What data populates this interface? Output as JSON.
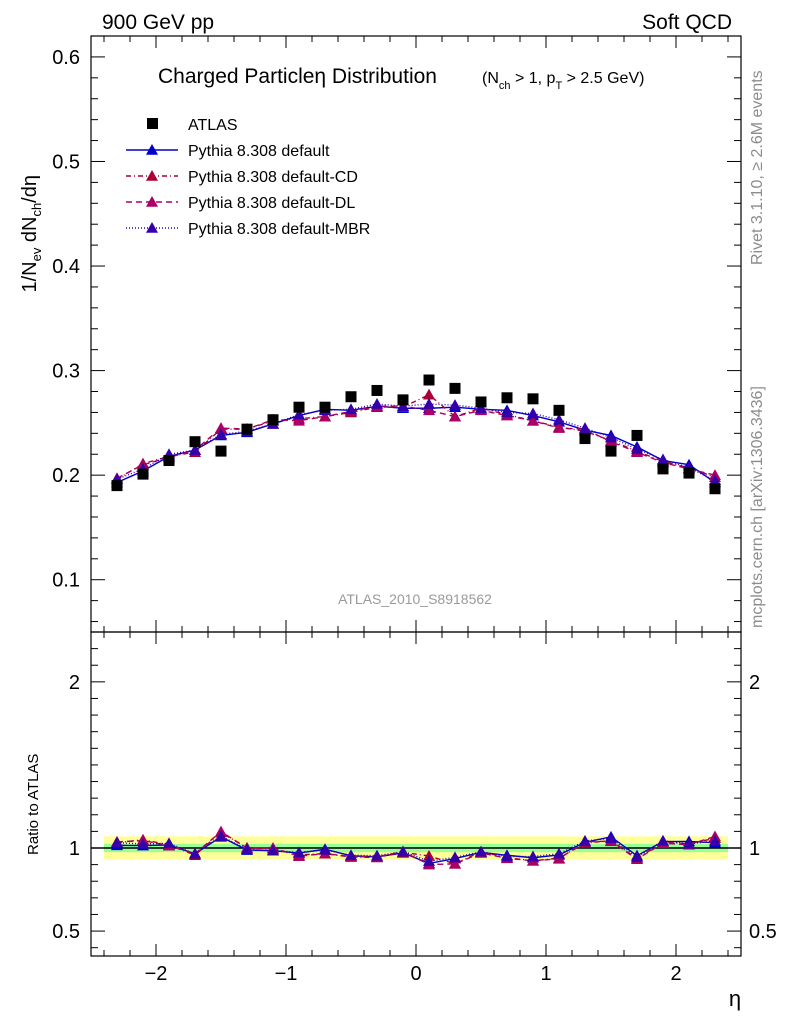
{
  "header": {
    "left": "900 GeV pp",
    "right": "Soft QCD"
  },
  "side_labels": {
    "rivet": "Rivet 3.1.10, ≥ 2.6M events",
    "mcplots": "mcplots.cern.ch [arXiv:1306.3436]"
  },
  "chart_data": {
    "type": "scatter",
    "title_main": "Charged Particleη Distribution",
    "title_cut": "(N_ch > 1, p_T > 2.5 GeV)",
    "title_cut_parts": {
      "open": "(N",
      "ch": "ch",
      "mid": " > 1, p",
      "T": "T",
      "close": " > 2.5 GeV)"
    },
    "watermark": "ATLAS_2010_S8918562",
    "xlabel": "η",
    "ylabel_main": "1/N_ev dN_ch/dη",
    "ylabel_parts": {
      "a": "1/N",
      "ev": "ev",
      "b": " dN",
      "ch": "ch",
      "c": "/dη"
    },
    "ylabel_ratio": "Ratio to ATLAS",
    "xlim": [
      -2.5,
      2.5
    ],
    "ylim_main": [
      0.05,
      0.62
    ],
    "ylim_ratio": [
      0.35,
      2.3
    ],
    "x_ticks": [
      -2,
      -1,
      0,
      1,
      2
    ],
    "x_tick_labels": [
      "−2",
      "−1",
      "0",
      "1",
      "2"
    ],
    "y_ticks_main": [
      0.1,
      0.2,
      0.3,
      0.4,
      0.5,
      0.6
    ],
    "y_tick_labels_main": [
      "0.1",
      "0.2",
      "0.3",
      "0.4",
      "0.5",
      "0.6"
    ],
    "y_ticks_ratio": [
      0.5,
      1,
      2
    ],
    "y_tick_labels_ratio": [
      "0.5",
      "1",
      "2"
    ],
    "x": [
      -2.3,
      -2.1,
      -1.9,
      -1.7,
      -1.5,
      -1.3,
      -1.1,
      -0.9,
      -0.7,
      -0.5,
      -0.3,
      -0.1,
      0.1,
      0.3,
      0.5,
      0.7,
      0.9,
      1.1,
      1.3,
      1.5,
      1.7,
      1.9,
      2.1,
      2.3
    ],
    "data": {
      "name": "ATLAS",
      "values": [
        0.19,
        0.201,
        0.214,
        0.232,
        0.223,
        0.244,
        0.253,
        0.265,
        0.265,
        0.275,
        0.281,
        0.272,
        0.291,
        0.283,
        0.27,
        0.274,
        0.273,
        0.262,
        0.235,
        0.223,
        0.238,
        0.206,
        0.202,
        0.187
      ],
      "band_inner": 0.025,
      "band_outer": 0.07,
      "color": "#000000"
    },
    "series": [
      {
        "name": "Pythia 8.308 default",
        "color": "#0000cc",
        "dash": "",
        "values": [
          0.193,
          0.204,
          0.218,
          0.224,
          0.238,
          0.241,
          0.249,
          0.257,
          0.263,
          0.262,
          0.266,
          0.264,
          0.264,
          0.265,
          0.263,
          0.262,
          0.257,
          0.251,
          0.243,
          0.238,
          0.227,
          0.214,
          0.21,
          0.193
        ]
      },
      {
        "name": "Pythia 8.308 default-CD",
        "color": "#aa0033",
        "dash": "5,3,1,3",
        "values": [
          0.196,
          0.211,
          0.218,
          0.222,
          0.244,
          0.244,
          0.252,
          0.254,
          0.256,
          0.26,
          0.265,
          0.265,
          0.277,
          0.256,
          0.264,
          0.258,
          0.252,
          0.246,
          0.242,
          0.233,
          0.223,
          0.213,
          0.207,
          0.198
        ]
      },
      {
        "name": "Pythia 8.308 default-DL",
        "color": "#aa0066",
        "dash": "6,4",
        "values": [
          0.197,
          0.21,
          0.217,
          0.224,
          0.245,
          0.244,
          0.253,
          0.252,
          0.256,
          0.261,
          0.266,
          0.266,
          0.262,
          0.256,
          0.262,
          0.257,
          0.252,
          0.245,
          0.244,
          0.232,
          0.222,
          0.212,
          0.206,
          0.2
        ]
      },
      {
        "name": "Pythia 8.308 default-MBR",
        "color": "#3300aa",
        "dash": "1,2",
        "values": [
          0.196,
          0.206,
          0.22,
          0.224,
          0.239,
          0.242,
          0.249,
          0.258,
          0.262,
          0.263,
          0.268,
          0.266,
          0.268,
          0.267,
          0.264,
          0.26,
          0.259,
          0.253,
          0.245,
          0.236,
          0.225,
          0.215,
          0.207,
          0.195
        ]
      }
    ]
  }
}
